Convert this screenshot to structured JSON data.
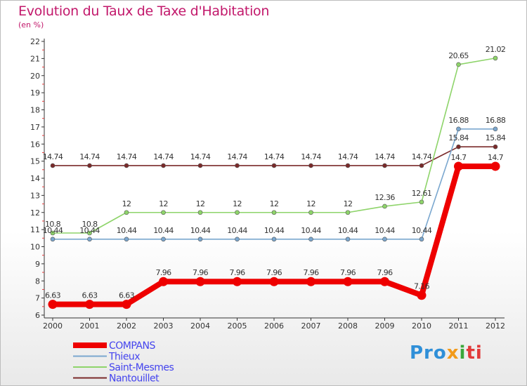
{
  "header": {
    "title": "Evolution du Taux de Taxe d'Habitation",
    "unit": "(en %)"
  },
  "logo": {
    "text": "Proxiti",
    "parts": [
      "Pro",
      "x",
      "i",
      "ti"
    ]
  },
  "chart_data": {
    "type": "line",
    "title": "Evolution du Taux de Taxe d'Habitation",
    "ylabel": "(en %)",
    "xlabel": "",
    "ylim": [
      6,
      22
    ],
    "y_ticks": [
      6,
      7,
      8,
      9,
      10,
      11,
      12,
      13,
      14,
      15,
      16,
      17,
      18,
      19,
      20,
      21,
      22
    ],
    "grid": false,
    "legend_position": "bottom-left",
    "categories": [
      "2000",
      "2001",
      "2002",
      "2003",
      "2004",
      "2005",
      "2006",
      "2007",
      "2008",
      "2009",
      "2010",
      "2011",
      "2012"
    ],
    "series": [
      {
        "name": "Nantouillet",
        "color": "#7a2a2a",
        "values": [
          14.74,
          14.74,
          14.74,
          14.74,
          14.74,
          14.74,
          14.74,
          14.74,
          14.74,
          14.74,
          14.74,
          15.84,
          15.84
        ],
        "labels": [
          "14.74",
          "14.74",
          "14.74",
          "14.74",
          "14.74",
          "14.74",
          "14.74",
          "14.74",
          "14.74",
          "14.74",
          "14.74",
          "15.84",
          "15.84"
        ]
      },
      {
        "name": "Saint-Mesmes",
        "color": "#8ed46a",
        "values": [
          10.8,
          10.8,
          12,
          12,
          12,
          12,
          12,
          12,
          12,
          12.36,
          12.61,
          20.65,
          21.02
        ],
        "labels": [
          "10.8",
          "10.8",
          "12",
          "12",
          "12",
          "12",
          "12",
          "12",
          "12",
          "12.36",
          "12.61",
          "20.65",
          "21.02"
        ]
      },
      {
        "name": "Thieux",
        "color": "#7aa7cf",
        "values": [
          10.44,
          10.44,
          10.44,
          10.44,
          10.44,
          10.44,
          10.44,
          10.44,
          10.44,
          10.44,
          10.44,
          16.88,
          16.88
        ],
        "labels": [
          "10.44",
          "10.44",
          "10.44",
          "10.44",
          "10.44",
          "10.44",
          "10.44",
          "10.44",
          "10.44",
          "10.44",
          "10.44",
          "16.88",
          "16.88"
        ]
      },
      {
        "name": "COMPANS",
        "color": "#ee0000",
        "values": [
          6.63,
          6.63,
          6.63,
          7.96,
          7.96,
          7.96,
          7.96,
          7.96,
          7.96,
          7.96,
          7.16,
          14.7,
          14.7
        ],
        "labels": [
          "6.63",
          "6.63",
          "6.63",
          "7.96",
          "7.96",
          "7.96",
          "7.96",
          "7.96",
          "7.96",
          "7.96",
          "7.16",
          "14.7",
          "14.7"
        ]
      }
    ],
    "legend": [
      "COMPANS",
      "Thieux",
      "Saint-Mesmes",
      "Nantouillet"
    ],
    "legend_color": "#4444ee"
  }
}
